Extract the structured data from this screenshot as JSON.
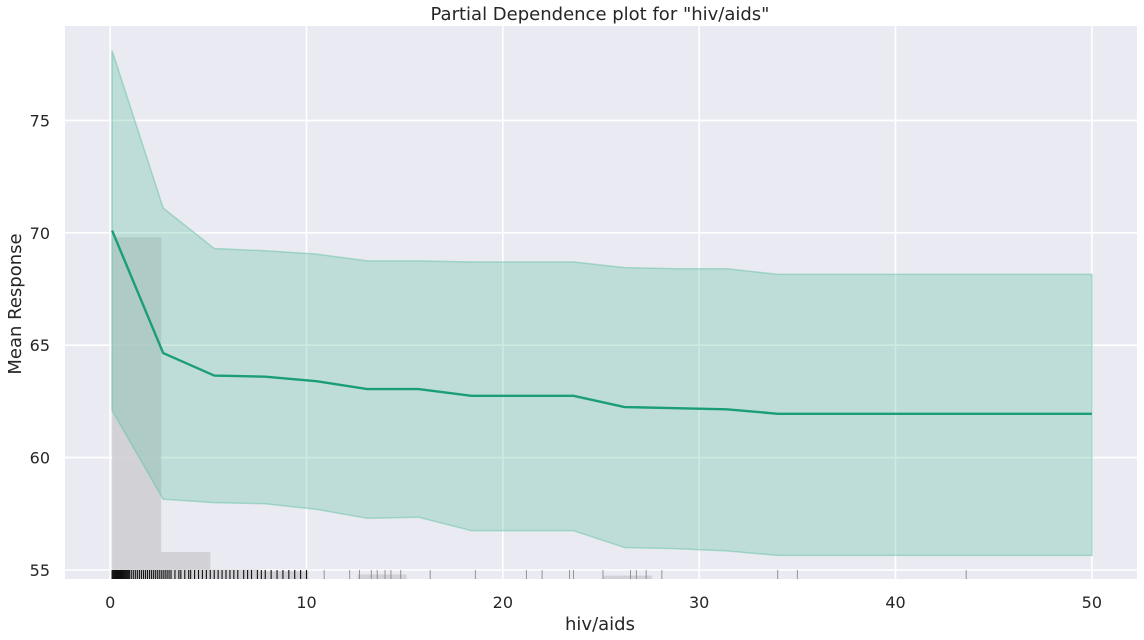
{
  "chart_data": {
    "type": "line",
    "title": "Partial Dependence plot for \"hiv/aids\"",
    "xlabel": "hiv/aids",
    "ylabel": "Mean Response",
    "xlim": [
      -2.3,
      52.3
    ],
    "ylim": [
      54.6,
      79.2
    ],
    "xticks": [
      0,
      10,
      20,
      30,
      40,
      50
    ],
    "yticks": [
      55,
      60,
      65,
      70,
      75
    ],
    "grid": true,
    "series": [
      {
        "name": "mean response",
        "x": [
          0.1,
          2.7,
          5.3,
          7.9,
          10.5,
          13.1,
          15.7,
          18.4,
          21.0,
          23.6,
          26.2,
          28.8,
          31.4,
          34.0,
          36.6,
          39.2,
          41.8,
          44.4,
          47.0,
          50.0
        ],
        "y": [
          70.1,
          64.65,
          63.65,
          63.6,
          63.4,
          63.05,
          63.05,
          62.75,
          62.75,
          62.75,
          62.25,
          62.2,
          62.15,
          61.95,
          61.95,
          61.95,
          61.95,
          61.95,
          61.95,
          61.95
        ],
        "upper": [
          78.1,
          71.1,
          69.3,
          69.2,
          69.05,
          68.75,
          68.75,
          68.7,
          68.7,
          68.7,
          68.45,
          68.4,
          68.4,
          68.15,
          68.15,
          68.15,
          68.15,
          68.15,
          68.15,
          68.15
        ],
        "lower": [
          62.1,
          58.15,
          58.0,
          57.95,
          57.7,
          57.3,
          57.35,
          56.75,
          56.75,
          56.75,
          56.0,
          55.95,
          55.85,
          55.65,
          55.65,
          55.65,
          55.65,
          55.65,
          55.65,
          55.65
        ],
        "line_color": "#1b9e77",
        "band_color": "#66c2a5"
      }
    ],
    "histogram": {
      "bins": [
        {
          "x0": 0.1,
          "x1": 2.6,
          "top": 69.8
        },
        {
          "x0": 2.6,
          "x1": 5.1,
          "top": 55.8
        },
        {
          "x0": 5.1,
          "x1": 7.6,
          "top": 55.02
        },
        {
          "x0": 7.6,
          "x1": 10.1,
          "top": 54.95
        },
        {
          "x0": 12.6,
          "x1": 15.1,
          "top": 54.8
        },
        {
          "x0": 25.1,
          "x1": 27.6,
          "top": 54.75
        }
      ],
      "color": "#c8c8cc"
    },
    "rug": [
      0.1,
      0.15,
      0.2,
      0.25,
      0.3,
      0.35,
      0.4,
      0.45,
      0.5,
      0.55,
      0.6,
      0.65,
      0.7,
      0.75,
      0.8,
      0.85,
      0.9,
      0.95,
      1.0,
      1.1,
      1.2,
      1.3,
      1.4,
      1.5,
      1.6,
      1.7,
      1.8,
      1.9,
      2.0,
      2.1,
      2.2,
      2.3,
      2.4,
      2.5,
      2.6,
      2.7,
      2.8,
      2.9,
      3.0,
      3.1,
      3.3,
      3.5,
      3.6,
      3.8,
      4.0,
      4.1,
      4.3,
      4.5,
      4.7,
      4.9,
      5.1,
      5.3,
      5.5,
      5.7,
      5.9,
      6.1,
      6.3,
      6.5,
      6.8,
      7.0,
      7.2,
      7.5,
      7.7,
      7.9,
      8.2,
      8.5,
      8.8,
      9.1,
      9.4,
      9.7,
      10.0,
      10.9,
      12.2,
      12.7,
      13.3,
      13.6,
      14.0,
      14.3,
      14.8,
      16.3,
      18.6,
      21.2,
      22.0,
      23.4,
      23.6,
      25.1,
      26.5,
      26.8,
      27.3,
      28.1,
      34.0,
      35.0,
      43.6
    ]
  },
  "colors": {
    "plot_bg": "#eaeaf2",
    "grid": "#ffffff"
  }
}
